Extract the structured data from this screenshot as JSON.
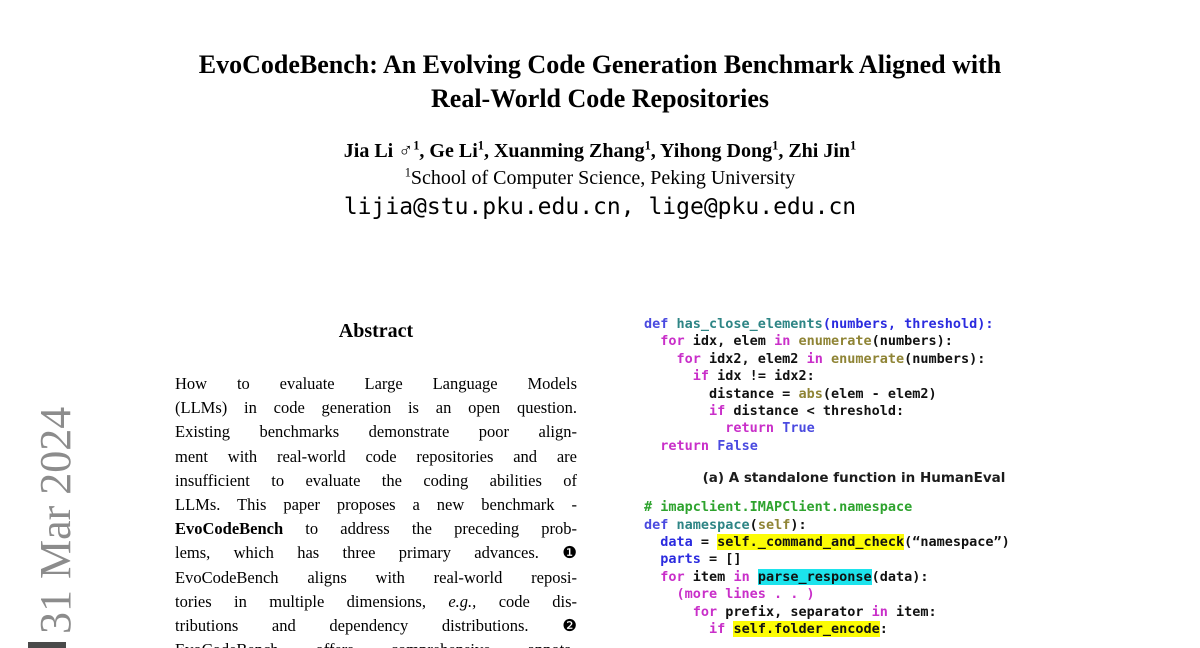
{
  "sidebar": {
    "date_text": "31 Mar 2024"
  },
  "header": {
    "title_line1": "EvoCodeBench: An Evolving Code Generation Benchmark Aligned with",
    "title_line2": "Real-World Code Repositories",
    "authors": [
      {
        "text": "Jia Li ♂",
        "sup": "1"
      },
      {
        "text": ", Ge Li",
        "sup": "1"
      },
      {
        "text": ", Xuanming Zhang",
        "sup": "1"
      },
      {
        "text": ", Yihong Dong",
        "sup": "1"
      },
      {
        "text": ", Zhi Jin",
        "sup": "1"
      }
    ],
    "affiliation": {
      "sup": "1",
      "text": "School of Computer Science, Peking University"
    },
    "emails": "lijia@stu.pku.edu.cn, lige@pku.edu.cn"
  },
  "abstract": {
    "heading": "Abstract",
    "lines": [
      [
        {
          "t": "How to evaluate Large Language Models",
          "s": "n"
        }
      ],
      [
        {
          "t": "(LLMs) in code generation is an open question.",
          "s": "n"
        }
      ],
      [
        {
          "t": "Existing benchmarks demonstrate poor align-",
          "s": "n"
        }
      ],
      [
        {
          "t": "ment with real-world code repositories and are",
          "s": "n"
        }
      ],
      [
        {
          "t": "insufficient to evaluate the coding abilities of",
          "s": "n"
        }
      ],
      [
        {
          "t": "LLMs. This paper proposes a new benchmark -",
          "s": "n"
        }
      ],
      [
        {
          "t": "EvoCodeBench",
          "s": "b"
        },
        {
          "t": " to address the preceding prob-",
          "s": "n"
        }
      ],
      [
        {
          "t": "lems, which has three primary advances. ",
          "s": "n"
        },
        {
          "t": "❶",
          "s": "n"
        }
      ],
      [
        {
          "t": "EvoCodeBench aligns with real-world reposi-",
          "s": "n"
        }
      ],
      [
        {
          "t": "tories in multiple dimensions, ",
          "s": "n"
        },
        {
          "t": "e.g.,",
          "s": "i"
        },
        {
          "t": " code dis-",
          "s": "n"
        }
      ],
      [
        {
          "t": "tributions and dependency distributions. ",
          "s": "n"
        },
        {
          "t": "❷",
          "s": "n"
        }
      ],
      [
        {
          "t": "EvoCodeBench offers comprehensive annota-",
          "s": "n"
        }
      ]
    ]
  },
  "figure": {
    "caption_a": "(a) A standalone function in HumanEval",
    "code_a": [
      [
        {
          "t": "def ",
          "s": "d"
        },
        {
          "t": "has_close_elements",
          "s": "f"
        },
        {
          "t": "(numbers, threshold):",
          "s": "v"
        }
      ],
      [
        {
          "t": "  ",
          "s": "p"
        },
        {
          "t": "for",
          "s": "k"
        },
        {
          "t": " idx, elem ",
          "s": "p"
        },
        {
          "t": "in",
          "s": "k"
        },
        {
          "t": " ",
          "s": "p"
        },
        {
          "t": "enumerate",
          "s": "b"
        },
        {
          "t": "(numbers):",
          "s": "p"
        }
      ],
      [
        {
          "t": "    ",
          "s": "p"
        },
        {
          "t": "for",
          "s": "k"
        },
        {
          "t": " idx2, elem2 ",
          "s": "p"
        },
        {
          "t": "in",
          "s": "k"
        },
        {
          "t": " ",
          "s": "p"
        },
        {
          "t": "enumerate",
          "s": "b"
        },
        {
          "t": "(numbers):",
          "s": "p"
        }
      ],
      [
        {
          "t": "      ",
          "s": "p"
        },
        {
          "t": "if",
          "s": "k"
        },
        {
          "t": " idx != idx2:",
          "s": "p"
        }
      ],
      [
        {
          "t": "        distance = ",
          "s": "p"
        },
        {
          "t": "abs",
          "s": "b"
        },
        {
          "t": "(elem - elem2)",
          "s": "p"
        }
      ],
      [
        {
          "t": "        ",
          "s": "p"
        },
        {
          "t": "if",
          "s": "k"
        },
        {
          "t": " distance < threshold:",
          "s": "p"
        }
      ],
      [
        {
          "t": "          ",
          "s": "p"
        },
        {
          "t": "return",
          "s": "k"
        },
        {
          "t": " ",
          "s": "p"
        },
        {
          "t": "True",
          "s": "d"
        }
      ],
      [
        {
          "t": "  ",
          "s": "p"
        },
        {
          "t": "return",
          "s": "k"
        },
        {
          "t": " ",
          "s": "p"
        },
        {
          "t": "False",
          "s": "d"
        }
      ]
    ],
    "code_b": [
      [
        {
          "t": "# imapclient.IMAPClient.namespace",
          "s": "c"
        }
      ],
      [
        {
          "t": "def ",
          "s": "d"
        },
        {
          "t": "namespace",
          "s": "f"
        },
        {
          "t": "(",
          "s": "p"
        },
        {
          "t": "self",
          "s": "b"
        },
        {
          "t": "):",
          "s": "p"
        }
      ],
      [
        {
          "t": "  ",
          "s": "p"
        },
        {
          "t": "data",
          "s": "v"
        },
        {
          "t": " = ",
          "s": "p"
        },
        {
          "t": "self._command_and_check",
          "s": "y"
        },
        {
          "t": "(“namespace”)",
          "s": "p"
        }
      ],
      [
        {
          "t": "  ",
          "s": "p"
        },
        {
          "t": "parts",
          "s": "v"
        },
        {
          "t": " = []",
          "s": "p"
        }
      ],
      [
        {
          "t": "  ",
          "s": "p"
        },
        {
          "t": "for",
          "s": "k"
        },
        {
          "t": " item ",
          "s": "p"
        },
        {
          "t": "in",
          "s": "k"
        },
        {
          "t": " ",
          "s": "p"
        },
        {
          "t": "parse_response",
          "s": "t"
        },
        {
          "t": "(data):",
          "s": "p"
        }
      ],
      [
        {
          "t": "    ",
          "s": "p"
        },
        {
          "t": "(more lines . . )",
          "s": "k"
        }
      ],
      [
        {
          "t": "      ",
          "s": "p"
        },
        {
          "t": "for",
          "s": "k"
        },
        {
          "t": " prefix, separator ",
          "s": "p"
        },
        {
          "t": "in",
          "s": "k"
        },
        {
          "t": " item:",
          "s": "p"
        }
      ],
      [
        {
          "t": "        ",
          "s": "p"
        },
        {
          "t": "if",
          "s": "k"
        },
        {
          "t": " ",
          "s": "p"
        },
        {
          "t": "self.folder_encode",
          "s": "y"
        },
        {
          "t": ":",
          "s": "p"
        }
      ]
    ]
  },
  "colors": {
    "kw": "#C92FC9",
    "def": "#4A4AE0",
    "fn": "#2E8585",
    "bi": "#8F8435",
    "var": "#2B2BDF",
    "com": "#2EA32E",
    "hl-yellow": "#FCFC05",
    "hl-cyan": "#1CE3EC",
    "date-gray": "#8C8C8C"
  }
}
